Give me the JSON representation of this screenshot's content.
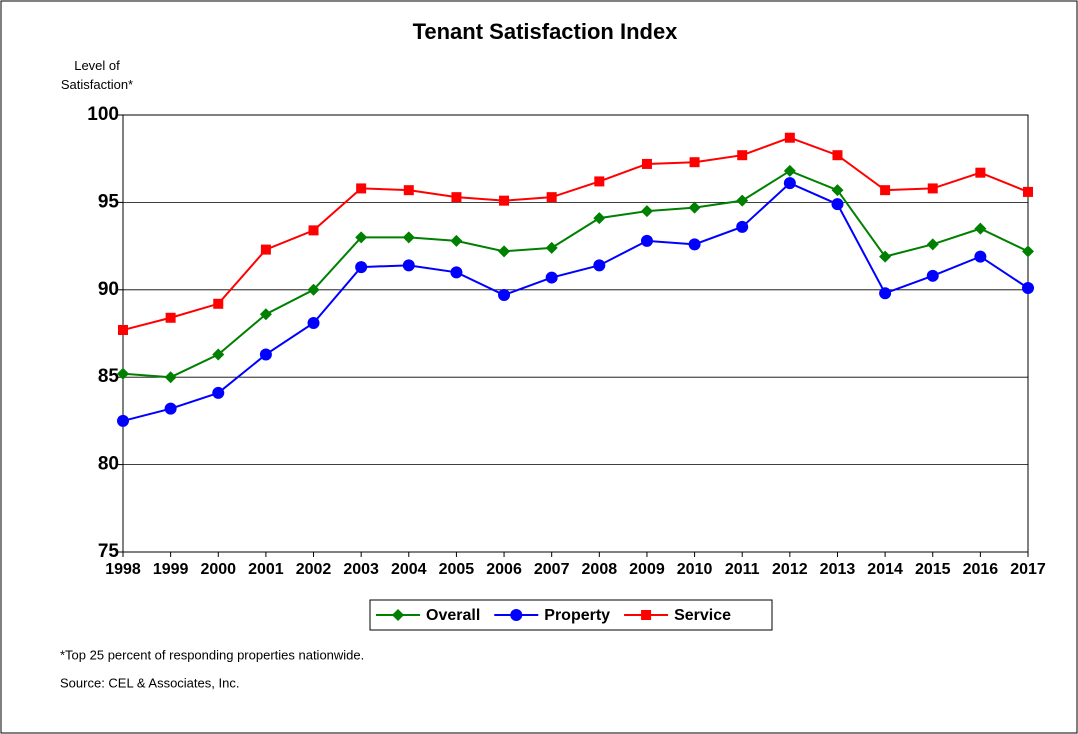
{
  "chart_data": {
    "type": "line",
    "title": "Tenant Satisfaction Index",
    "y_label": "Level of Satisfaction*",
    "categories": [
      "1998",
      "1999",
      "2000",
      "2001",
      "2002",
      "2003",
      "2004",
      "2005",
      "2006",
      "2007",
      "2008",
      "2009",
      "2010",
      "2011",
      "2012",
      "2013",
      "2014",
      "2015",
      "2016",
      "2017"
    ],
    "series": [
      {
        "name": "Overall",
        "color": "#008000",
        "marker": "diamond",
        "values": [
          85.2,
          85.0,
          86.3,
          88.6,
          90.0,
          93.0,
          93.0,
          92.8,
          92.2,
          92.4,
          94.1,
          94.5,
          94.7,
          95.1,
          96.8,
          95.7,
          91.9,
          92.6,
          93.5,
          92.2
        ]
      },
      {
        "name": "Property",
        "color": "#0000ff",
        "marker": "circle",
        "values": [
          82.5,
          83.2,
          84.1,
          86.3,
          88.1,
          91.3,
          91.4,
          91.0,
          89.7,
          90.7,
          91.4,
          92.8,
          92.6,
          93.6,
          96.1,
          94.9,
          89.8,
          90.8,
          91.9,
          90.1
        ]
      },
      {
        "name": "Service",
        "color": "#ff0000",
        "marker": "square",
        "values": [
          87.7,
          88.4,
          89.2,
          92.3,
          93.4,
          95.8,
          95.7,
          95.3,
          95.1,
          95.3,
          96.2,
          97.2,
          97.3,
          97.7,
          98.7,
          97.7,
          95.7,
          95.8,
          96.7,
          95.6
        ]
      }
    ],
    "ylim": [
      75,
      100
    ],
    "yticks": [
      75,
      80,
      85,
      90,
      95,
      100
    ],
    "grid": true,
    "legend": "bottom",
    "footnotes": [
      "*Top 25 percent of responding properties nationwide.",
      "Source: CEL & Associates, Inc."
    ]
  }
}
